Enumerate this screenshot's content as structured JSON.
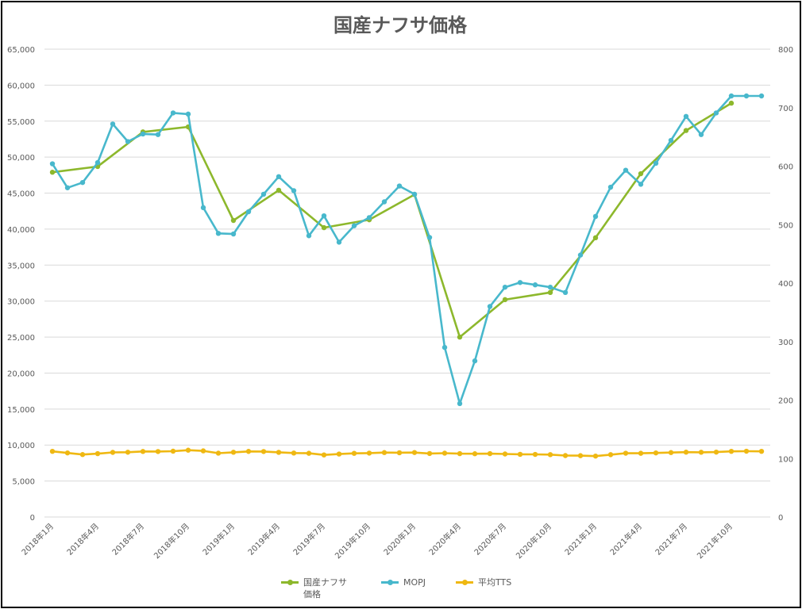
{
  "chart_data": {
    "type": "line",
    "title": "国産ナフサ価格",
    "categories": [
      "2018年1月",
      "2018年2月",
      "2018年3月",
      "2018年4月",
      "2018年5月",
      "2018年6月",
      "2018年7月",
      "2018年8月",
      "2018年9月",
      "2018年10月",
      "2018年11月",
      "2018年12月",
      "2019年1月",
      "2019年2月",
      "2019年3月",
      "2019年4月",
      "2019年5月",
      "2019年6月",
      "2019年7月",
      "2019年8月",
      "2019年9月",
      "2019年10月",
      "2019年11月",
      "2019年12月",
      "2020年1月",
      "2020年2月",
      "2020年3月",
      "2020年4月",
      "2020年5月",
      "2020年6月",
      "2020年7月",
      "2020年8月",
      "2020年9月",
      "2020年10月",
      "2020年11月",
      "2020年12月",
      "2021年1月",
      "2021年2月",
      "2021年3月",
      "2021年4月",
      "2021年5月",
      "2021年6月",
      "2021年7月",
      "2021年8月",
      "2021年9月",
      "2021年10月",
      "2021年11月",
      "2021年12月"
    ],
    "x_tick_labels": [
      "2018年1月",
      "2018年4月",
      "2018年7月",
      "2018年10月",
      "2019年1月",
      "2019年4月",
      "2019年7月",
      "2019年10月",
      "2020年1月",
      "2020年4月",
      "2020年7月",
      "2020年10月",
      "2021年1月",
      "2021年4月",
      "2021年7月",
      "2021年10月"
    ],
    "y_left": {
      "ylim": [
        0,
        65000
      ],
      "ticks": [
        "0",
        "5,000",
        "10,000",
        "15,000",
        "20,000",
        "25,000",
        "30,000",
        "35,000",
        "40,000",
        "45,000",
        "50,000",
        "55,000",
        "60,000",
        "65,000"
      ]
    },
    "y_right": {
      "ylim": [
        0,
        800
      ],
      "ticks": [
        "0",
        "100",
        "200",
        "300",
        "400",
        "500",
        "600",
        "700",
        "800"
      ]
    },
    "grid": true,
    "legend_position": "bottom",
    "series": [
      {
        "name": "国産ナフサ\n価格",
        "axis": "left",
        "color": "#8db82c",
        "points": [
          [
            0,
            47900
          ],
          [
            3,
            48700
          ],
          [
            6,
            53500
          ],
          [
            9,
            54200
          ],
          [
            12,
            41200
          ],
          [
            15,
            45400
          ],
          [
            18,
            40200
          ],
          [
            21,
            41300
          ],
          [
            24,
            44800
          ],
          [
            27,
            25000
          ],
          [
            30,
            30200
          ],
          [
            33,
            31200
          ],
          [
            36,
            38800
          ],
          [
            39,
            47700
          ],
          [
            42,
            53700
          ],
          [
            45,
            57500
          ]
        ]
      },
      {
        "name": "MOPJ",
        "axis": "right",
        "color": "#48b8cc",
        "values": [
          604,
          563,
          572,
          606,
          672,
          642,
          655,
          654,
          691,
          689,
          529,
          485,
          484,
          522,
          552,
          582,
          558,
          481,
          515,
          470,
          498,
          512,
          539,
          566,
          552,
          478,
          290,
          194,
          267,
          360,
          393,
          401,
          397,
          393,
          384,
          448,
          514,
          564,
          593,
          569,
          605,
          644,
          685,
          654,
          691,
          720,
          720,
          720
        ]
      },
      {
        "name": "平均TTS",
        "axis": "right",
        "color": "#efb812",
        "values": [
          112.3,
          109.6,
          106.8,
          108.4,
          110.5,
          110.8,
          112.1,
          112.0,
          112.6,
          114.3,
          113.1,
          109.2,
          110.7,
          112.2,
          112.0,
          110.6,
          109.4,
          109.0,
          106.2,
          107.7,
          108.9,
          109.3,
          110.2,
          109.9,
          110.3,
          108.6,
          109.2,
          108.4,
          108.2,
          108.4,
          107.8,
          107.2,
          107.1,
          106.7,
          105.1,
          104.9,
          104.2,
          106.6,
          109.1,
          109.0,
          109.6,
          110.2,
          110.9,
          110.7,
          111.0,
          112.3,
          112.5,
          112.3
        ]
      }
    ]
  }
}
